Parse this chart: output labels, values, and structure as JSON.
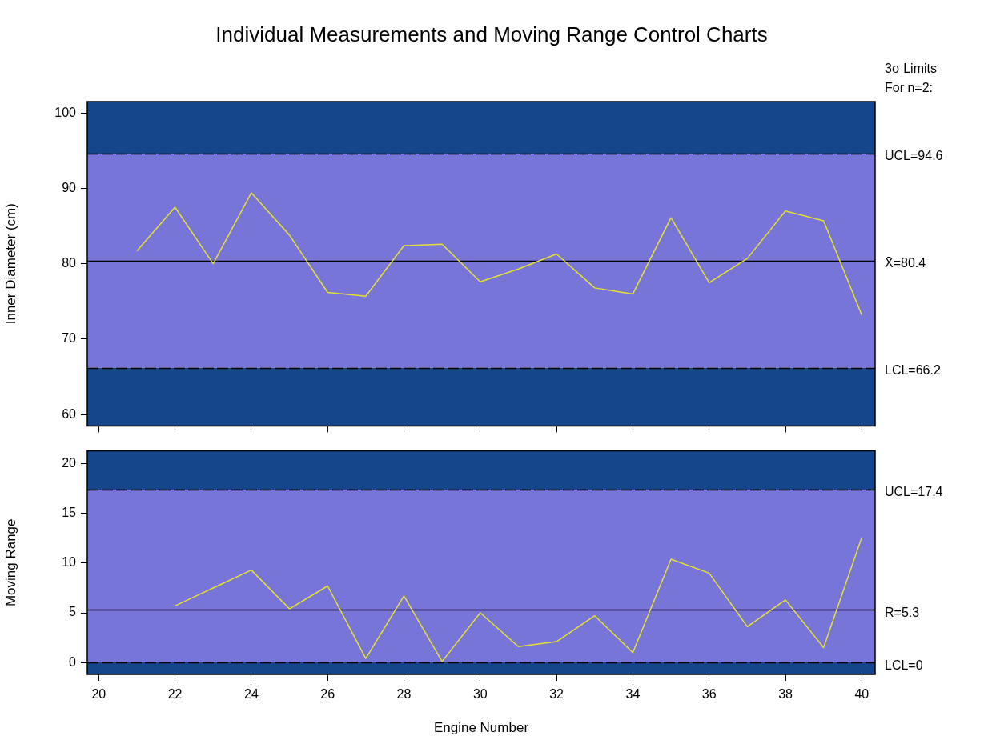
{
  "chart_data": [
    {
      "type": "line",
      "title": "Individual Measurements and Moving Range Control Charts",
      "ylabel": "Inner Diameter (cm)",
      "x": [
        21,
        22,
        23,
        24,
        25,
        26,
        27,
        28,
        29,
        30,
        31,
        32,
        33,
        34,
        35,
        36,
        37,
        38,
        39,
        40
      ],
      "series": [
        {
          "color": "#e6e12e",
          "values": [
            81.7,
            87.5,
            80.0,
            89.4,
            83.8,
            76.2,
            75.7,
            82.4,
            82.6,
            77.6,
            79.3,
            81.3,
            76.8,
            76.0,
            86.1,
            77.5,
            80.7,
            87.0,
            85.7,
            73.2
          ]
        }
      ],
      "xlim": [
        19.7,
        40.35
      ],
      "xticks": [
        {
          "value": 20,
          "label": null
        },
        {
          "value": 22,
          "label": null
        },
        {
          "value": 24,
          "label": null
        },
        {
          "value": 26,
          "label": null
        },
        {
          "value": 28,
          "label": null
        },
        {
          "value": 30,
          "label": null
        },
        {
          "value": 32,
          "label": null
        },
        {
          "value": 34,
          "label": null
        },
        {
          "value": 36,
          "label": null
        },
        {
          "value": 38,
          "label": null
        },
        {
          "value": 40,
          "label": null
        }
      ],
      "ylim": [
        58.5,
        101.5
      ],
      "yticks": [
        60,
        70,
        80,
        90,
        100
      ],
      "tick_labels": "y",
      "bands": [
        {
          "axis": "y",
          "from": 94.6,
          "to": 101.5,
          "color": "#15468a"
        },
        {
          "axis": "y",
          "from": 66.2,
          "to": 94.6,
          "color": "#7875d8"
        },
        {
          "axis": "y",
          "from": 58.5,
          "to": 66.2,
          "color": "#15468a"
        }
      ],
      "ref_lines": [
        {
          "axis": "y",
          "value": 94.6,
          "label": "UCL=94.6",
          "color": "#000000",
          "line_style": "dashed"
        },
        {
          "axis": "y",
          "value": 80.4,
          "label": "X̄=80.4",
          "color": "#000000",
          "line_style": "solid"
        },
        {
          "axis": "y",
          "value": 66.2,
          "label": "LCL=66.2",
          "color": "#000000",
          "line_style": "dashed"
        }
      ],
      "annotations": [
        "3σ Limits",
        "For n=2:"
      ]
    },
    {
      "type": "line",
      "xlabel": "Engine Number",
      "ylabel": "Moving Range",
      "x": [
        22,
        23,
        24,
        25,
        26,
        27,
        28,
        29,
        30,
        31,
        32,
        33,
        34,
        35,
        36,
        37,
        38,
        39,
        40
      ],
      "series": [
        {
          "color": "#e6e12e",
          "values": [
            5.7,
            7.5,
            9.3,
            5.4,
            7.7,
            0.4,
            6.7,
            0.1,
            5.0,
            1.6,
            2.1,
            4.7,
            1.0,
            10.4,
            9.0,
            3.6,
            6.3,
            1.5,
            12.6
          ]
        }
      ],
      "xlim": [
        19.7,
        40.35
      ],
      "xticks": [
        20,
        22,
        24,
        26,
        28,
        30,
        32,
        34,
        36,
        38,
        40
      ],
      "ylim": [
        -1.2,
        21.3
      ],
      "yticks": [
        0,
        5,
        10,
        15,
        20
      ],
      "bands": [
        {
          "axis": "y",
          "from": 17.4,
          "to": 21.3,
          "color": "#15468a"
        },
        {
          "axis": "y",
          "from": 0,
          "to": 17.4,
          "color": "#7875d8"
        },
        {
          "axis": "y",
          "from": -1.2,
          "to": 0,
          "color": "#15468a"
        }
      ],
      "ref_lines": [
        {
          "axis": "y",
          "value": 17.4,
          "label": "UCL=17.4",
          "color": "#000000",
          "line_style": "dashed"
        },
        {
          "axis": "y",
          "value": 5.3,
          "label": "R̄=5.3",
          "color": "#000000",
          "line_style": "solid"
        },
        {
          "axis": "y",
          "value": 0,
          "label": "LCL=0",
          "color": "#000000",
          "line_style": "dashed"
        }
      ]
    }
  ]
}
